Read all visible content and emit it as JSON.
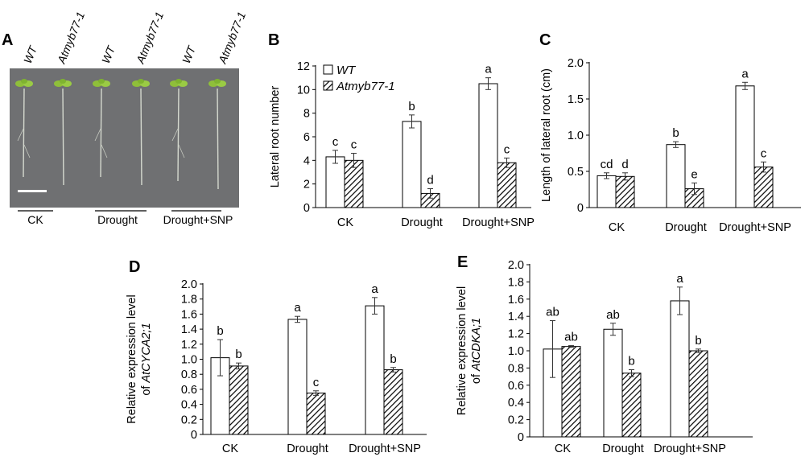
{
  "panels": {
    "A": {
      "letter": "A",
      "genotype_labels": [
        "WT",
        "Atmyb77-1",
        "WT",
        "Atmyb77-1",
        "WT",
        "Atmyb77-1"
      ],
      "groups": [
        "CK",
        "Drought",
        "Drought+SNP"
      ]
    }
  },
  "legend": {
    "wt": "WT",
    "mutant": "Atmyb77-1"
  },
  "chart_data": [
    {
      "panel": "B",
      "type": "bar",
      "categories": [
        "CK",
        "Drought",
        "Drought+SNP"
      ],
      "ylabel": "Lateral root number",
      "ylabel_lines": [
        "Lateral root number"
      ],
      "ylim": [
        0,
        12
      ],
      "yticks": [
        "0",
        "2",
        "4",
        "6",
        "8",
        "10",
        "12"
      ],
      "legend_position": "top-left",
      "series": [
        {
          "name": "WT",
          "values": [
            4.3,
            7.3,
            10.5
          ],
          "errors": [
            0.55,
            0.55,
            0.5
          ],
          "letters": [
            "c",
            "b",
            "a"
          ]
        },
        {
          "name": "Atmyb77-1",
          "values": [
            4.0,
            1.2,
            3.8
          ],
          "errors": [
            0.6,
            0.4,
            0.4
          ],
          "letters": [
            "c",
            "d",
            "c"
          ]
        }
      ]
    },
    {
      "panel": "C",
      "type": "bar",
      "categories": [
        "CK",
        "Drought",
        "Drought+SNP"
      ],
      "ylabel": "Length of lateral root (cm)",
      "ylabel_lines": [
        "Length of lateral root (cm)"
      ],
      "ylim": [
        0,
        2.0
      ],
      "yticks": [
        "0",
        "0.5",
        "1.0",
        "1.5",
        "2.0"
      ],
      "series": [
        {
          "name": "WT",
          "values": [
            0.44,
            0.87,
            1.68
          ],
          "errors": [
            0.04,
            0.04,
            0.05
          ],
          "letters": [
            "cd",
            "b",
            "a"
          ]
        },
        {
          "name": "Atmyb77-1",
          "values": [
            0.43,
            0.26,
            0.56
          ],
          "errors": [
            0.05,
            0.08,
            0.07
          ],
          "letters": [
            "d",
            "e",
            "c"
          ]
        }
      ]
    },
    {
      "panel": "D",
      "type": "bar",
      "categories": [
        "CK",
        "Drought",
        "Drought+SNP"
      ],
      "ylabel": "Relative expression level of AtCYCA2;1",
      "ylabel_lines": [
        "Relative expression level",
        "of",
        "AtCYCA2;1"
      ],
      "ylim": [
        0,
        2.0
      ],
      "yticks": [
        "0",
        "0.2",
        "0.4",
        "0.6",
        "0.8",
        "1.0",
        "1.2",
        "1.4",
        "1.6",
        "1.8",
        "2.0"
      ],
      "series": [
        {
          "name": "WT",
          "values": [
            1.02,
            1.53,
            1.71
          ],
          "errors": [
            0.24,
            0.04,
            0.11
          ],
          "letters": [
            "b",
            "a",
            "a"
          ]
        },
        {
          "name": "Atmyb77-1",
          "values": [
            0.91,
            0.55,
            0.86
          ],
          "errors": [
            0.04,
            0.03,
            0.03
          ],
          "letters": [
            "b",
            "c",
            "b"
          ]
        }
      ]
    },
    {
      "panel": "E",
      "type": "bar",
      "categories": [
        "CK",
        "Drought",
        "Drought+SNP"
      ],
      "ylabel": "Relative expression level of AtCDKA;1",
      "ylabel_lines": [
        "Relative expression level",
        "of",
        "AtCDKA;1"
      ],
      "ylim": [
        0,
        2.0
      ],
      "yticks": [
        "0",
        "0.2",
        "0.4",
        "0.6",
        "0.8",
        "1.0",
        "1.2",
        "1.4",
        "1.6",
        "1.8",
        "2.0"
      ],
      "series": [
        {
          "name": "WT",
          "values": [
            1.02,
            1.25,
            1.58
          ],
          "errors": [
            0.33,
            0.07,
            0.16
          ],
          "letters": [
            "ab",
            "ab",
            "a"
          ]
        },
        {
          "name": "Atmyb77-1",
          "values": [
            1.05,
            0.74,
            1.0
          ],
          "errors": [
            0.01,
            0.04,
            0.02
          ],
          "letters": [
            "ab",
            "b",
            "b"
          ]
        }
      ]
    }
  ]
}
